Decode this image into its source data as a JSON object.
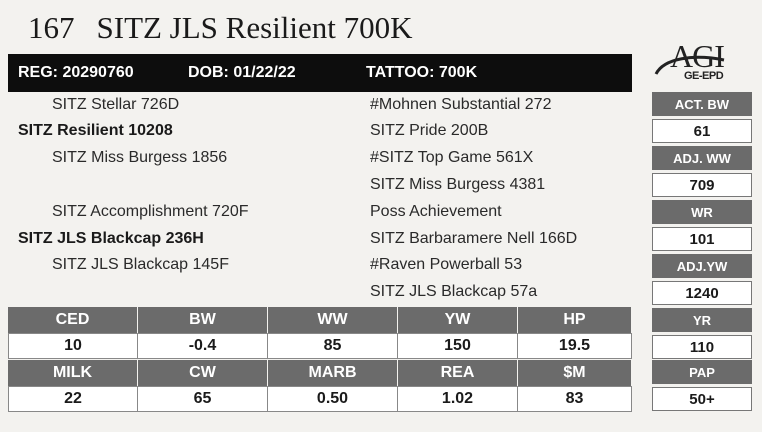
{
  "header": {
    "lot_number": "167",
    "animal_name": "SITZ JLS Resilient 700K"
  },
  "info_bar": {
    "reg": "REG: 20290760",
    "dob": "DOB: 01/22/22",
    "tattoo": "TATTOO: 700K"
  },
  "logo": {
    "text": "AGI",
    "subtext": "GE-EPD"
  },
  "pedigree": {
    "sire_sire": "SITZ Stellar 726D",
    "sire": "SITZ Resilient 10208",
    "sire_dam": "SITZ Miss Burgess 1856",
    "dam_sire": "SITZ Accomplishment 720F",
    "dam": "SITZ JLS Blackcap 236H",
    "dam_dam": "SITZ JLS Blackcap 145F",
    "ss_sire": "#Mohnen Substantial 272",
    "ss_dam": "SITZ Pride 200B",
    "sd_sire": "#SITZ Top Game 561X",
    "sd_dam": "SITZ Miss Burgess 4381",
    "ds_sire": "Poss Achievement",
    "ds_dam": "SITZ Barbaramere Nell 166D",
    "dd_sire": "#Raven Powerball 53",
    "dd_dam": "SITZ JLS Blackcap 57a"
  },
  "performance": {
    "act_bw_label": "ACT. BW",
    "act_bw": "61",
    "adj_ww_label": "ADJ. WW",
    "adj_ww": "709",
    "wr_label": "WR",
    "wr": "101",
    "adj_yw_label": "ADJ.YW",
    "adj_yw": "1240",
    "yr_label": "YR",
    "yr": "110",
    "pap_label": "PAP",
    "pap": "50+"
  },
  "epds_row1": {
    "headers": [
      "CED",
      "BW",
      "WW",
      "YW",
      "HP"
    ],
    "values": [
      "10",
      "-0.4",
      "85",
      "150",
      "19.5"
    ]
  },
  "epds_row2": {
    "headers": [
      "MILK",
      "CW",
      "MARB",
      "REA",
      "$M"
    ],
    "values": [
      "22",
      "65",
      "0.50",
      "1.02",
      "83"
    ]
  }
}
